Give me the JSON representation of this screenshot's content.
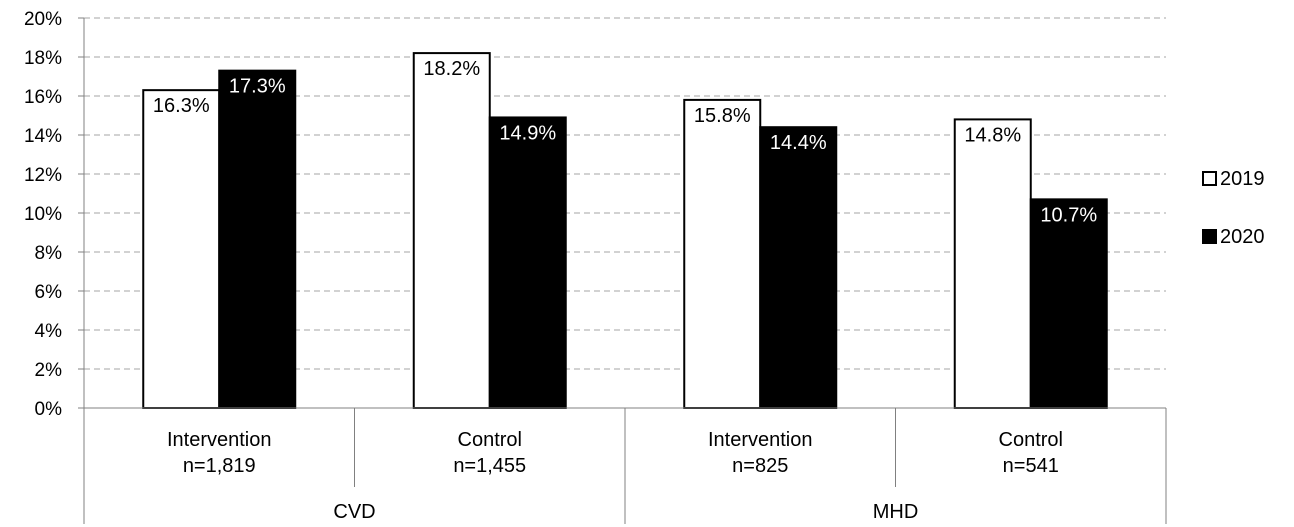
{
  "chart_data": {
    "type": "bar",
    "ylim": [
      0,
      20
    ],
    "yticks": [
      "0%",
      "2%",
      "4%",
      "6%",
      "8%",
      "10%",
      "12%",
      "14%",
      "16%",
      "18%",
      "20%"
    ],
    "grid": "dashed horizontal",
    "legend_position": "right",
    "groups": [
      {
        "label": "CVD",
        "categories": [
          {
            "line1": "Intervention",
            "line2": "n=1,819"
          },
          {
            "line1": "Control",
            "line2": "n=1,455"
          }
        ]
      },
      {
        "label": "MHD",
        "categories": [
          {
            "line1": "Intervention",
            "line2": "n=825"
          },
          {
            "line1": "Control",
            "line2": "n=541"
          }
        ]
      }
    ],
    "series": [
      {
        "name": "2019",
        "color": "#ffffff",
        "values": [
          16.3,
          18.2,
          15.8,
          14.8
        ],
        "labels": [
          "16.3%",
          "18.2%",
          "15.8%",
          "14.8%"
        ]
      },
      {
        "name": "2020",
        "color": "#000000",
        "values": [
          17.3,
          14.9,
          14.4,
          10.7
        ],
        "labels": [
          "17.3%",
          "14.9%",
          "14.4%",
          "10.7%"
        ]
      }
    ]
  }
}
